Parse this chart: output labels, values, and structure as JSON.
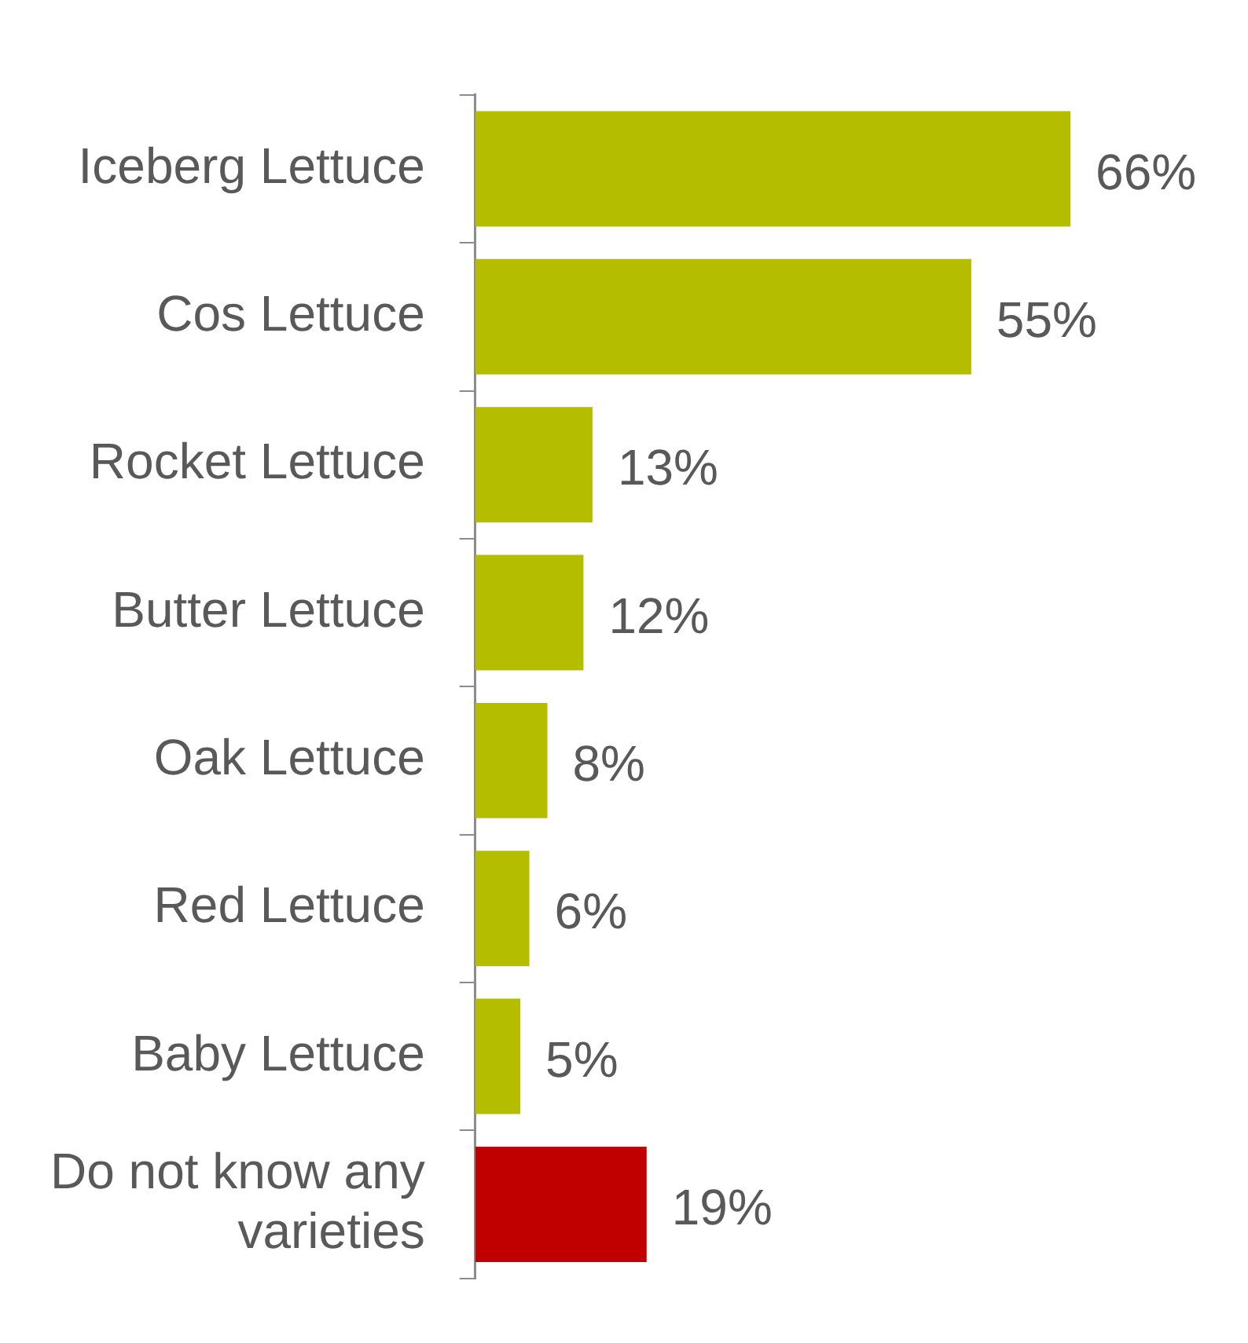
{
  "chart_data": {
    "type": "bar",
    "orientation": "horizontal",
    "categories": [
      "Iceberg Lettuce",
      "Cos Lettuce",
      "Rocket Lettuce",
      "Butter Lettuce",
      "Oak Lettuce",
      "Red Lettuce",
      "Baby Lettuce",
      "Do not know any varieties"
    ],
    "values": [
      66,
      55,
      13,
      12,
      8,
      6,
      5,
      19
    ],
    "value_labels": [
      "66%",
      "55%",
      "13%",
      "12%",
      "8%",
      "6%",
      "5%",
      "19%"
    ],
    "colors": [
      "#b5bd00",
      "#b5bd00",
      "#b5bd00",
      "#b5bd00",
      "#b5bd00",
      "#b5bd00",
      "#b5bd00",
      "#c00000"
    ],
    "legend": false
  }
}
